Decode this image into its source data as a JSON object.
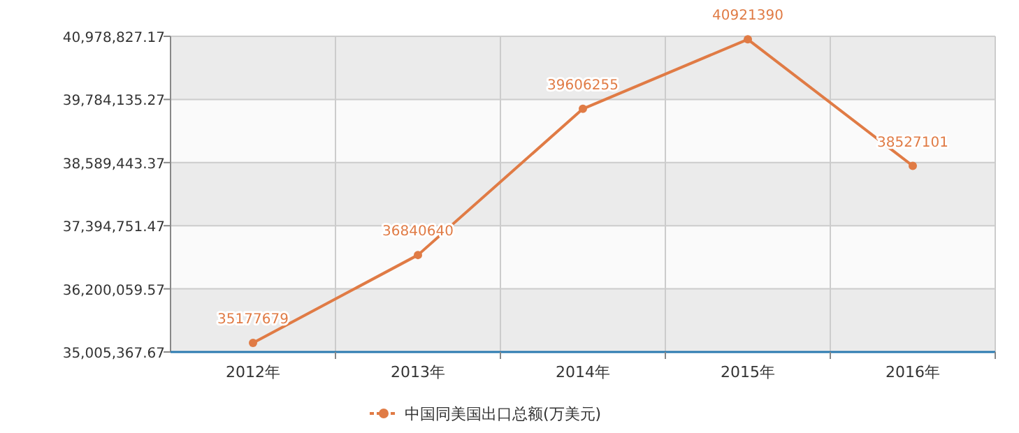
{
  "chart_data": {
    "type": "line",
    "categories": [
      "2012年",
      "2013年",
      "2014年",
      "2015年",
      "2016年"
    ],
    "series": [
      {
        "name": "中国同美国出口总额(万美元)",
        "color": "#e07b45",
        "values": [
          35177679,
          36840640,
          39606255,
          40921390,
          38527101
        ]
      }
    ],
    "ylim": [
      35005367.67,
      40978827.17
    ],
    "yticks": [
      {
        "value": 35005367.67,
        "label": "35,005,367.67"
      },
      {
        "value": 36200059.57,
        "label": "36,200,059.57"
      },
      {
        "value": 37394751.47,
        "label": "37,394,751.47"
      },
      {
        "value": 38589443.37,
        "label": "38,589,443.37"
      },
      {
        "value": 39784135.27,
        "label": "39,784,135.27"
      },
      {
        "value": 40978827.17,
        "label": "40,978,827.17"
      }
    ],
    "grid": true,
    "legend": "bottom",
    "marker": "circle",
    "line_style": "solid",
    "data_labels": true
  }
}
